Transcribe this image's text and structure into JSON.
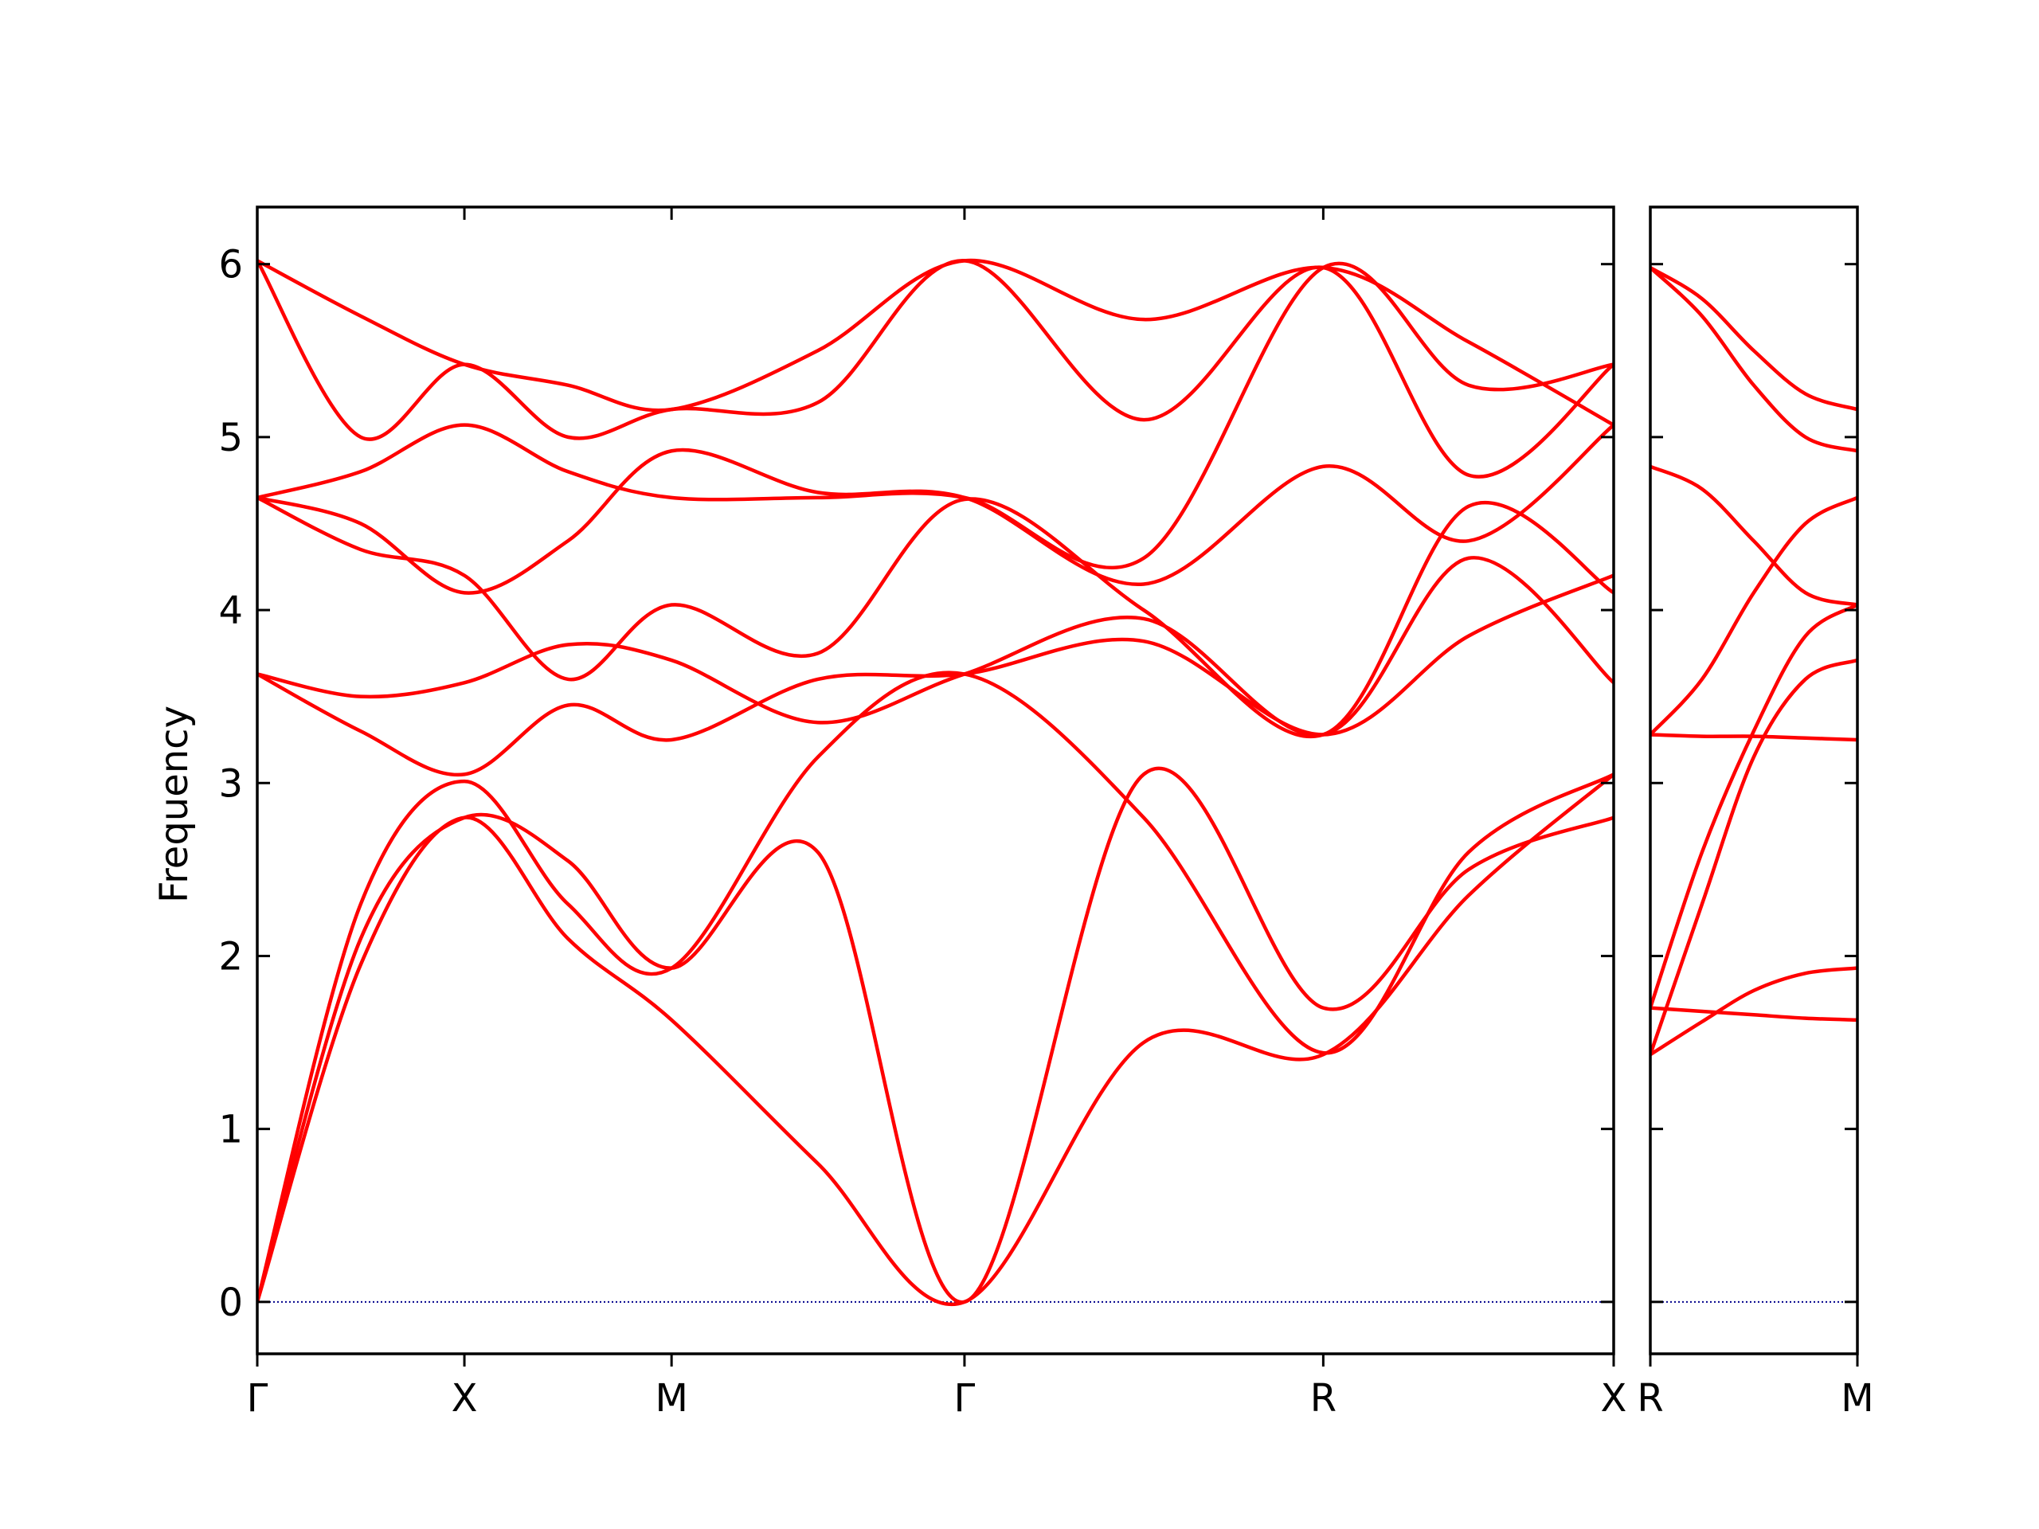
{
  "chart_data": {
    "type": "line",
    "title": "",
    "ylabel": "Frequency",
    "ylim": [
      -0.3,
      6.33
    ],
    "yticks": [
      0,
      1,
      2,
      3,
      4,
      5,
      6
    ],
    "grid": false,
    "legend": "none",
    "line_color": "#ff0000",
    "zero_line_color": "#00008b",
    "panels": [
      {
        "name": "main",
        "x_range": [
          0,
          2.964
        ],
        "ticks": [
          {
            "x": 0.0,
            "label": "Γ"
          },
          {
            "x": 0.4526,
            "label": "X"
          },
          {
            "x": 0.9053,
            "label": "M"
          },
          {
            "x": 1.5454,
            "label": "Γ"
          },
          {
            "x": 2.3294,
            "label": "R"
          },
          {
            "x": 2.964,
            "label": "X"
          }
        ],
        "series": [
          {
            "x": [
              0,
              0.226,
              0.4526,
              0.679,
              0.9053,
              1.225,
              1.5454,
              1.937,
              2.3294,
              2.647,
              2.964
            ],
            "y": [
              0.0,
              1.95,
              2.8,
              2.1,
              1.63,
              0.8,
              0.0,
              1.5,
              1.43,
              2.35,
              3.05
            ]
          },
          {
            "x": [
              0,
              0.226,
              0.4526,
              0.679,
              0.9053,
              1.225,
              1.5454,
              1.937,
              2.3294,
              2.647,
              2.964
            ],
            "y": [
              0.0,
              2.1,
              2.8,
              2.55,
              1.93,
              2.6,
              0.0,
              3.05,
              1.7,
              2.5,
              2.8
            ]
          },
          {
            "x": [
              0,
              0.226,
              0.4526,
              0.679,
              0.9053,
              1.225,
              1.5454,
              1.937,
              2.3294,
              2.647,
              2.964
            ],
            "y": [
              0.0,
              2.3,
              3.01,
              2.3,
              1.93,
              3.15,
              3.63,
              2.8,
              1.44,
              2.6,
              3.05
            ]
          },
          {
            "x": [
              0,
              0.226,
              0.4526,
              0.679,
              0.9053,
              1.225,
              1.5454,
              1.937,
              2.3294,
              2.647,
              2.964
            ],
            "y": [
              3.63,
              3.3,
              3.05,
              3.45,
              3.25,
              3.6,
              3.63,
              3.82,
              3.28,
              3.85,
              4.2
            ]
          },
          {
            "x": [
              0,
              0.226,
              0.4526,
              0.679,
              0.9053,
              1.225,
              1.5454,
              1.937,
              2.3294,
              2.647,
              2.964
            ],
            "y": [
              3.63,
              3.5,
              3.58,
              3.8,
              3.71,
              3.35,
              3.63,
              3.95,
              3.28,
              4.3,
              3.58
            ]
          },
          {
            "x": [
              0,
              0.226,
              0.4526,
              0.679,
              0.9053,
              1.225,
              1.5454,
              1.937,
              2.3294,
              2.647,
              2.964
            ],
            "y": [
              4.65,
              4.35,
              4.2,
              3.6,
              4.03,
              3.75,
              4.64,
              4.0,
              3.28,
              4.6,
              4.1
            ]
          },
          {
            "x": [
              0,
              0.226,
              0.4526,
              0.679,
              0.9053,
              1.225,
              1.5454,
              1.937,
              2.3294,
              2.647,
              2.964
            ],
            "y": [
              4.65,
              4.5,
              4.1,
              4.4,
              4.92,
              4.68,
              4.65,
              4.15,
              4.83,
              4.4,
              5.07
            ]
          },
          {
            "x": [
              0,
              0.226,
              0.4526,
              0.679,
              0.9053,
              1.225,
              1.5454,
              1.937,
              2.3294,
              2.647,
              2.964
            ],
            "y": [
              4.65,
              4.8,
              5.07,
              4.8,
              4.65,
              4.65,
              4.65,
              4.3,
              5.98,
              5.3,
              5.42
            ]
          },
          {
            "x": [
              0,
              0.226,
              0.4526,
              0.679,
              0.9053,
              1.225,
              1.5454,
              1.937,
              2.3294,
              2.647,
              2.964
            ],
            "y": [
              6.02,
              5.0,
              5.42,
              5.0,
              5.16,
              5.2,
              6.02,
              5.1,
              5.98,
              4.78,
              5.42
            ]
          },
          {
            "x": [
              0,
              0.226,
              0.4526,
              0.679,
              0.9053,
              1.225,
              1.5454,
              1.937,
              2.3294,
              2.647,
              2.964
            ],
            "y": [
              6.02,
              5.7,
              5.42,
              5.3,
              5.16,
              5.5,
              6.02,
              5.68,
              5.98,
              5.55,
              5.07
            ]
          }
        ]
      },
      {
        "name": "right",
        "x_range": [
          0,
          0.4526
        ],
        "ticks": [
          {
            "x": 0.0,
            "label": "R"
          },
          {
            "x": 0.4526,
            "label": "M"
          }
        ],
        "series": [
          {
            "x": [
              0,
              0.113,
              0.226,
              0.339,
              0.4526
            ],
            "y": [
              1.43,
              1.62,
              1.8,
              1.9,
              1.93
            ]
          },
          {
            "x": [
              0,
              0.113,
              0.226,
              0.339,
              0.4526
            ],
            "y": [
              1.7,
              1.68,
              1.66,
              1.64,
              1.63
            ]
          },
          {
            "x": [
              0,
              0.113,
              0.226,
              0.339,
              0.4526
            ],
            "y": [
              1.43,
              2.3,
              3.15,
              3.6,
              3.71
            ]
          },
          {
            "x": [
              0,
              0.113,
              0.226,
              0.339,
              0.4526
            ],
            "y": [
              1.7,
              2.6,
              3.3,
              3.85,
              4.03
            ]
          },
          {
            "x": [
              0,
              0.113,
              0.226,
              0.339,
              0.4526
            ],
            "y": [
              3.28,
              3.27,
              3.27,
              3.26,
              3.25
            ]
          },
          {
            "x": [
              0,
              0.113,
              0.226,
              0.339,
              0.4526
            ],
            "y": [
              3.28,
              3.6,
              4.1,
              4.5,
              4.65
            ]
          },
          {
            "x": [
              0,
              0.113,
              0.226,
              0.339,
              0.4526
            ],
            "y": [
              4.83,
              4.7,
              4.4,
              4.1,
              4.03
            ]
          },
          {
            "x": [
              0,
              0.113,
              0.226,
              0.339,
              0.4526
            ],
            "y": [
              5.98,
              5.7,
              5.3,
              5.0,
              4.92
            ]
          },
          {
            "x": [
              0,
              0.113,
              0.226,
              0.339,
              0.4526
            ],
            "y": [
              5.98,
              5.8,
              5.5,
              5.25,
              5.16
            ]
          }
        ]
      }
    ]
  }
}
